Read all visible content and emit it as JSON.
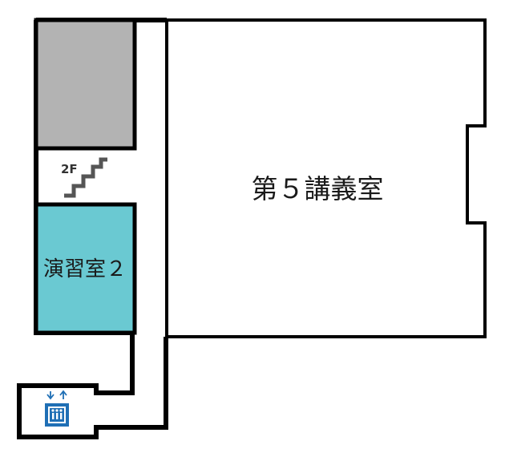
{
  "floor_map": {
    "floor_label": "2F",
    "rooms": [
      {
        "id": "lecture-room-5",
        "label": "第５講義室",
        "fill": "#ffffff"
      },
      {
        "id": "seminar-room-2",
        "label": "演習室２",
        "fill": "#6ac9d2"
      },
      {
        "id": "storage-area",
        "label": "",
        "fill": "#b3b3b3"
      }
    ],
    "icons": {
      "stairs": "stairs-icon",
      "elevator": "elevator-icon",
      "elevator_color": "#1f6fb5"
    },
    "wall_color": "#000000",
    "stairs_color": "#555555"
  }
}
